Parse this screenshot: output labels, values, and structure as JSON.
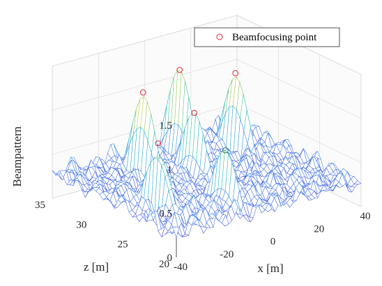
{
  "chart_data": {
    "type": "surface",
    "title": "",
    "zlabel": "Beampattern",
    "xlabel": "x [m]",
    "ylabel": "z [m]",
    "x_ticks": [
      "-40",
      "-20",
      "0",
      "20",
      "40"
    ],
    "y_ticks": [
      "20",
      "25",
      "30",
      "35"
    ],
    "z_ticks": [
      "0",
      "0.5",
      "1",
      "1.5"
    ],
    "xlim": [
      -40,
      40
    ],
    "ylim": [
      20,
      35
    ],
    "zlim": [
      0,
      1.5
    ],
    "grid": true,
    "colormap": [
      "#3b2aa0",
      "#4a5ae6",
      "#3c8ee8",
      "#1fb6c8",
      "#39c69a",
      "#a9c545",
      "#f6d22a",
      "#f9f21a"
    ],
    "legend": {
      "label": "Beamfocusing point",
      "marker_color": "#e8232b",
      "position": "top-right"
    },
    "series": [
      {
        "name": "Beamfocusing point",
        "points": [
          {
            "x": -30,
            "z": 25,
            "value": 1.0
          },
          {
            "x": -15,
            "z": 31,
            "value": 1.2
          },
          {
            "x": -8,
            "z": 23,
            "value": 0.85
          },
          {
            "x": 0,
            "z": 29,
            "value": 0.95
          },
          {
            "x": 8,
            "z": 33,
            "value": 1.2
          },
          {
            "x": 25,
            "z": 31,
            "value": 1.13
          }
        ]
      }
    ]
  }
}
